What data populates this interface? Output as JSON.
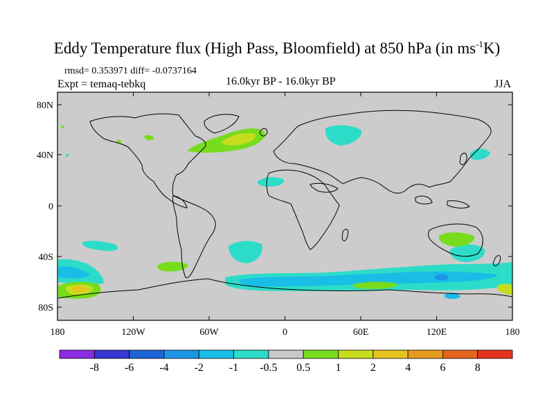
{
  "title": {
    "main": "Eddy Temperature flux (High Pass, Bloomfield) at 850 hPa (in ms",
    "sup": "-1",
    "end": "K)"
  },
  "stats": "rmsd= 0.353971 diff= -0.0737164",
  "experiment": "Expt = temaq-tebkq",
  "period": "16.0kyr BP - 16.0kyr BP",
  "season": "JJA",
  "lat_labels": [
    "80N",
    "40N",
    "0",
    "40S",
    "80S"
  ],
  "lon_labels": [
    "180",
    "120W",
    "60W",
    "0",
    "60E",
    "120E",
    "180"
  ],
  "colorbar": {
    "labels": [
      "-8",
      "-6",
      "-4",
      "-2",
      "-1",
      "-0.5",
      "0.5",
      "1",
      "2",
      "4",
      "6",
      "8"
    ],
    "colors": [
      "#8b2be2",
      "#3737d6",
      "#1e64d9",
      "#1e96e6",
      "#19bde6",
      "#2ddcc8",
      "#c8c8c8",
      "#78dc1e",
      "#c8dc1e",
      "#e6c31e",
      "#e69b1e",
      "#e6641e",
      "#e6321e"
    ]
  },
  "map": {
    "ocean_color": "#cccccc",
    "land_color": "#cccccc"
  }
}
